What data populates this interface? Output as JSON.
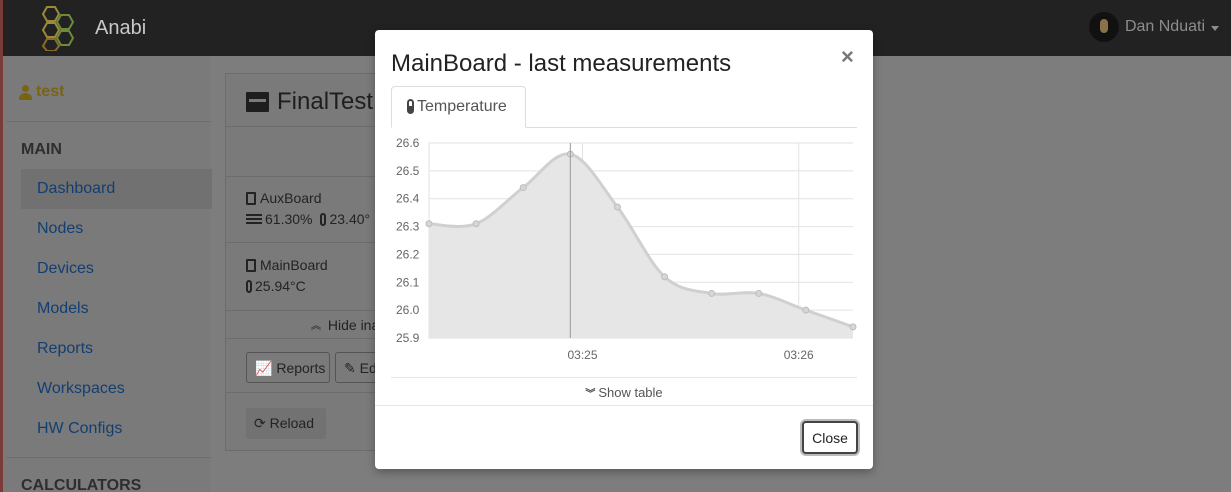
{
  "app": {
    "brand": "Anabi",
    "user": "Dan Nduati"
  },
  "sidebar": {
    "user_label": "test",
    "sections": {
      "main": "MAIN",
      "calculators": "CALCULATORS"
    },
    "items": [
      {
        "label": "Dashboard",
        "active": true
      },
      {
        "label": "Nodes"
      },
      {
        "label": "Devices"
      },
      {
        "label": "Models"
      },
      {
        "label": "Reports"
      },
      {
        "label": "Workspaces"
      },
      {
        "label": "HW Configs"
      }
    ]
  },
  "panel": {
    "title": "FinalTest",
    "boards": [
      {
        "name": "AuxBoard",
        "humidity": "61.30%",
        "temperature": "23.40°"
      },
      {
        "name": "MainBoard",
        "temperature": "25.94°C"
      }
    ],
    "hide_inactive": "Hide ina",
    "buttons": {
      "reports": "Reports",
      "edit": "Ed",
      "reload": "Reload"
    }
  },
  "modal": {
    "title": "MainBoard - last measurements",
    "close_symbol": "×",
    "tab": "Temperature",
    "show_table": "Show table",
    "close_button": "Close"
  },
  "chart_data": {
    "type": "area",
    "title": "",
    "xlabel": "",
    "ylabel": "",
    "x_ticks": [
      "03:25",
      "03:26"
    ],
    "y_ticks": [
      "26.6",
      "26.5",
      "26.4",
      "26.3",
      "26.2",
      "26.1",
      "26.0",
      "25.9"
    ],
    "ylim": [
      25.9,
      26.6
    ],
    "grid": true,
    "fill_color": "#e6e6e6",
    "line_color": "#d0d0d0",
    "series": [
      {
        "values": [
          26.31,
          26.31,
          26.44,
          26.56,
          26.37,
          26.12,
          26.06,
          26.06,
          26.0,
          25.94
        ]
      }
    ]
  }
}
